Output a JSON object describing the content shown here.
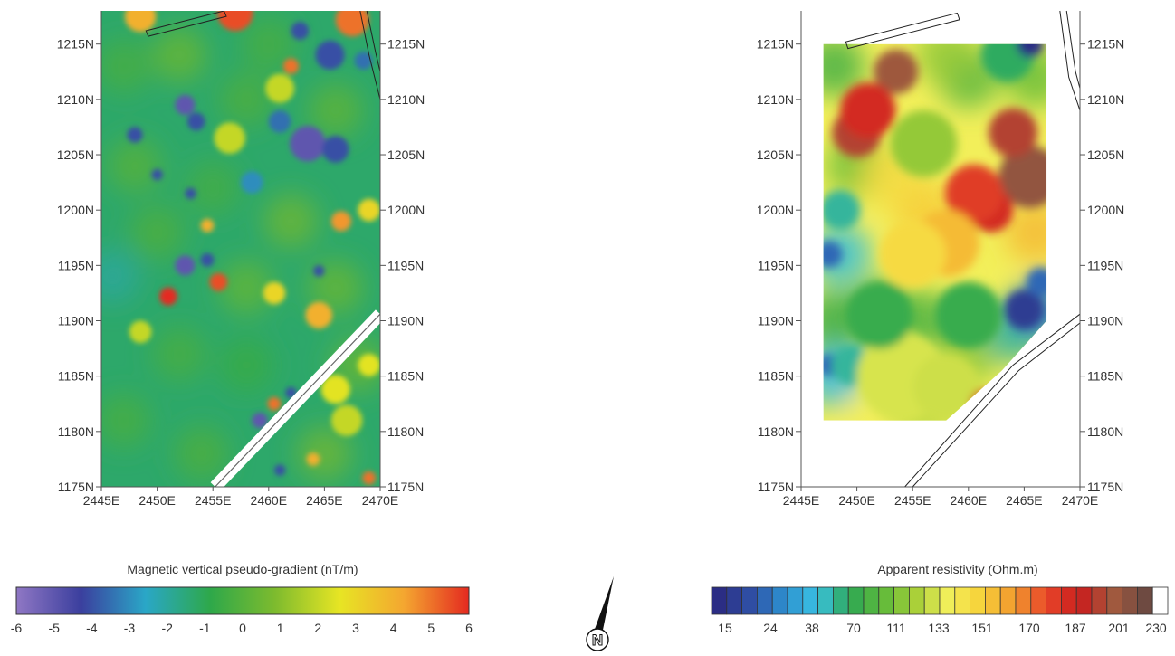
{
  "chart_data": [
    {
      "type": "heatmap",
      "variable": "magnetic vertical pseudo-gradient",
      "colorbar": {
        "title": "Magnetic vertical pseudo-gradient (nT/m)",
        "ticks": [
          "-6",
          "-5",
          "-4",
          "-3",
          "-2",
          "-1",
          "0",
          "1",
          "2",
          "3",
          "4",
          "5",
          "6"
        ],
        "range": [
          -6,
          6
        ],
        "colors": [
          "#8f77c4",
          "#3b3f9e",
          "#2aa7c7",
          "#2ea84a",
          "#7dbb2e",
          "#e7e524",
          "#f4a630",
          "#e42a20"
        ]
      },
      "x_ticks": [
        "2445E",
        "2450E",
        "2455E",
        "2460E",
        "2465E",
        "2470E"
      ],
      "y_ticks": [
        "1215N",
        "1210N",
        "1205N",
        "1200N",
        "1195N",
        "1190N",
        "1185N",
        "1180N",
        "1175N"
      ],
      "xlim": [
        2445,
        2470
      ],
      "ylim": [
        1175,
        1218
      ],
      "anomalies": [
        {
          "x": 2448.5,
          "y": 1217.5,
          "value": 4,
          "r": 1.4
        },
        {
          "x": 2457,
          "y": 1217.8,
          "value": 5.5,
          "r": 1.6
        },
        {
          "x": 2467.5,
          "y": 1217.2,
          "value": 5,
          "r": 1.5
        },
        {
          "x": 2462.8,
          "y": 1216.2,
          "value": -4,
          "r": 0.8
        },
        {
          "x": 2465.5,
          "y": 1214,
          "value": -4,
          "r": 1.3
        },
        {
          "x": 2468.5,
          "y": 1213.5,
          "value": -3.5,
          "r": 0.8
        },
        {
          "x": 2462,
          "y": 1213,
          "value": 5,
          "r": 0.7
        },
        {
          "x": 2452.5,
          "y": 1209.5,
          "value": -5,
          "r": 0.9
        },
        {
          "x": 2453.5,
          "y": 1208,
          "value": -4,
          "r": 0.8
        },
        {
          "x": 2461,
          "y": 1208,
          "value": -3.5,
          "r": 1.0
        },
        {
          "x": 2463.5,
          "y": 1206,
          "value": -5,
          "r": 1.6
        },
        {
          "x": 2466,
          "y": 1205.5,
          "value": -4,
          "r": 1.2
        },
        {
          "x": 2448,
          "y": 1206.8,
          "value": -4,
          "r": 0.7
        },
        {
          "x": 2450,
          "y": 1203.2,
          "value": -4,
          "r": 0.5
        },
        {
          "x": 2453,
          "y": 1201.5,
          "value": -4,
          "r": 0.5
        },
        {
          "x": 2458.5,
          "y": 1202.5,
          "value": -3,
          "r": 1.0
        },
        {
          "x": 2454.5,
          "y": 1198.6,
          "value": 4,
          "r": 0.6
        },
        {
          "x": 2466.5,
          "y": 1199,
          "value": 4.5,
          "r": 0.9
        },
        {
          "x": 2469,
          "y": 1200,
          "value": 3,
          "r": 1.0
        },
        {
          "x": 2452.5,
          "y": 1195,
          "value": -5,
          "r": 0.9
        },
        {
          "x": 2454.5,
          "y": 1195.5,
          "value": -4,
          "r": 0.6
        },
        {
          "x": 2455.5,
          "y": 1193.5,
          "value": 5.5,
          "r": 0.8
        },
        {
          "x": 2451,
          "y": 1192.2,
          "value": 6,
          "r": 0.8
        },
        {
          "x": 2460.5,
          "y": 1192.5,
          "value": 3,
          "r": 1.0
        },
        {
          "x": 2464.5,
          "y": 1194.5,
          "value": -4,
          "r": 0.5
        },
        {
          "x": 2464.5,
          "y": 1190.5,
          "value": 4,
          "r": 1.2
        },
        {
          "x": 2448.5,
          "y": 1189,
          "value": 2,
          "r": 1.0
        },
        {
          "x": 2460.5,
          "y": 1182.5,
          "value": 5,
          "r": 0.6
        },
        {
          "x": 2459.2,
          "y": 1181,
          "value": -5,
          "r": 0.7
        },
        {
          "x": 2462,
          "y": 1183.5,
          "value": -4,
          "r": 0.5
        },
        {
          "x": 2466,
          "y": 1183.8,
          "value": 2.5,
          "r": 1.3
        },
        {
          "x": 2469,
          "y": 1186,
          "value": 2.5,
          "r": 1.0
        },
        {
          "x": 2461,
          "y": 1176.5,
          "value": -4,
          "r": 0.5
        },
        {
          "x": 2464,
          "y": 1177.5,
          "value": 4,
          "r": 0.6
        },
        {
          "x": 2469,
          "y": 1175.8,
          "value": 5,
          "r": 0.6
        },
        {
          "x": 2467,
          "y": 1181,
          "value": 2,
          "r": 1.4
        },
        {
          "x": 2456.5,
          "y": 1206.5,
          "value": 2,
          "r": 1.4
        },
        {
          "x": 2461,
          "y": 1211,
          "value": 2,
          "r": 1.3
        }
      ]
    },
    {
      "type": "heatmap",
      "variable": "apparent resistivity",
      "colorbar": {
        "title": "Apparent  resistivity (Ohm.m)",
        "ticks": [
          "15",
          "24",
          "38",
          "70",
          "111",
          "133",
          "151",
          "170",
          "187",
          "201",
          "230"
        ],
        "colors": [
          "#2b2d84",
          "#2f4fa5",
          "#2d8fcf",
          "#3ac1e3",
          "#2ea853",
          "#5fba3a",
          "#a7cf38",
          "#f2ef5a",
          "#f7d23a",
          "#f29a2e",
          "#e8462a",
          "#c91d1d",
          "#a45a3e",
          "#6e4a41",
          "#ffffff"
        ]
      },
      "x_ticks": [
        "2445E",
        "2450E",
        "2455E",
        "2460E",
        "2465E",
        "2470E"
      ],
      "y_ticks": [
        "1215N",
        "1210N",
        "1205N",
        "1200N",
        "1195N",
        "1190N",
        "1185N",
        "1180N",
        "1175N"
      ],
      "xlim": [
        2445,
        2470
      ],
      "ylim": [
        1175,
        1218
      ],
      "survey_bounds": {
        "x": [
          2447,
          2467
        ],
        "y": [
          1181,
          1215
        ]
      },
      "anomalies": [
        {
          "x": 2450,
          "y": 1207,
          "value": 200,
          "r": 2.2
        },
        {
          "x": 2453.5,
          "y": 1212.5,
          "value": 210,
          "r": 2.0
        },
        {
          "x": 2451,
          "y": 1209,
          "value": 190,
          "r": 2.5
        },
        {
          "x": 2465.5,
          "y": 1203,
          "value": 215,
          "r": 2.8
        },
        {
          "x": 2464,
          "y": 1207,
          "value": 200,
          "r": 2.2
        },
        {
          "x": 2462,
          "y": 1200,
          "value": 190,
          "r": 2.0
        },
        {
          "x": 2460.5,
          "y": 1201.5,
          "value": 185,
          "r": 2.6
        },
        {
          "x": 2458,
          "y": 1197,
          "value": 160,
          "r": 3.0
        },
        {
          "x": 2455,
          "y": 1196,
          "value": 150,
          "r": 3.0
        },
        {
          "x": 2448.5,
          "y": 1200,
          "value": 60,
          "r": 1.8
        },
        {
          "x": 2447.5,
          "y": 1196,
          "value": 25,
          "r": 1.2
        },
        {
          "x": 2447.5,
          "y": 1186,
          "value": 25,
          "r": 1.0
        },
        {
          "x": 2449.5,
          "y": 1186,
          "value": 60,
          "r": 1.8
        },
        {
          "x": 2465,
          "y": 1191,
          "value": 18,
          "r": 1.8
        },
        {
          "x": 2466.5,
          "y": 1193.5,
          "value": 25,
          "r": 1.3
        },
        {
          "x": 2463.5,
          "y": 1214,
          "value": 70,
          "r": 2.4
        },
        {
          "x": 2465.5,
          "y": 1215,
          "value": 15,
          "r": 1.2
        },
        {
          "x": 2456,
          "y": 1206,
          "value": 120,
          "r": 3.0
        },
        {
          "x": 2454,
          "y": 1185,
          "value": 135,
          "r": 4.0
        },
        {
          "x": 2458,
          "y": 1184,
          "value": 133,
          "r": 3.0
        },
        {
          "x": 2461.5,
          "y": 1182.5,
          "value": 190,
          "r": 1.3
        },
        {
          "x": 2460,
          "y": 1190.5,
          "value": 80,
          "r": 3.0
        },
        {
          "x": 2452,
          "y": 1190.5,
          "value": 80,
          "r": 3.0
        }
      ]
    }
  ]
}
